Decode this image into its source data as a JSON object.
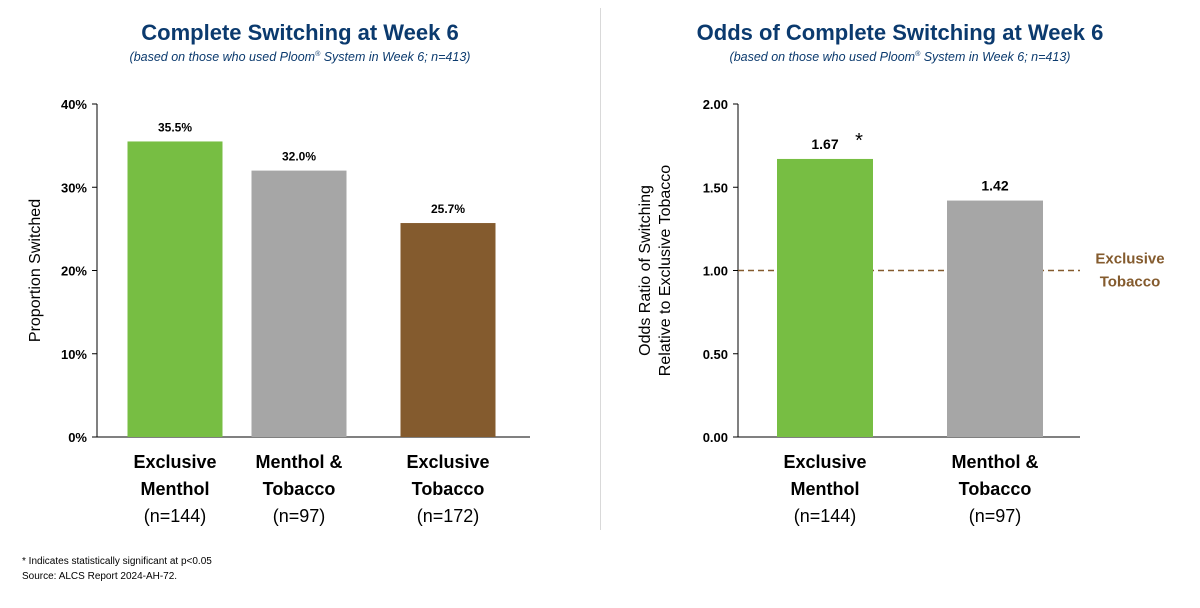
{
  "chart_data": [
    {
      "type": "bar",
      "title": "Complete Switching at Week 6",
      "subtitle_pre": "(based on those who used Ploom",
      "subtitle_sup": "®",
      "subtitle_post": " System in Week 6; n=413)",
      "ylabel": [
        "Proportion Switched"
      ],
      "ylim": [
        0,
        40
      ],
      "yticks": [
        "0%",
        "10%",
        "20%",
        "30%",
        "40%"
      ],
      "ytick_values": [
        0,
        10,
        20,
        30,
        40
      ],
      "categories": [
        [
          "Exclusive",
          "Menthol",
          "(n=144)"
        ],
        [
          "Menthol &",
          "Tobacco",
          "(n=97)"
        ],
        [
          "Exclusive",
          "Tobacco",
          "(n=172)"
        ]
      ],
      "values": [
        35.5,
        32.0,
        25.7
      ],
      "data_labels": [
        "35.5%",
        "32.0%",
        "25.7%"
      ],
      "colors": [
        "#77BE43",
        "#A6A6A6",
        "#845B2E"
      ],
      "grid": false
    },
    {
      "type": "bar",
      "title": "Odds of Complete Switching at Week 6",
      "subtitle_pre": "(based on those who used Ploom",
      "subtitle_sup": "®",
      "subtitle_post": " System in Week 6; n=413)",
      "ylabel": [
        "Odds Ratio of Switching",
        "Relative to Exclusive Tobacco"
      ],
      "ylim": [
        0,
        2
      ],
      "yticks": [
        "0.00",
        "0.50",
        "1.00",
        "1.50",
        "2.00"
      ],
      "ytick_values": [
        0,
        0.5,
        1,
        1.5,
        2
      ],
      "categories": [
        [
          "Exclusive",
          "Menthol",
          "(n=144)"
        ],
        [
          "Menthol &",
          "Tobacco",
          "(n=97)"
        ]
      ],
      "values": [
        1.67,
        1.42
      ],
      "data_labels": [
        "1.67",
        "1.42"
      ],
      "annotations": [
        "*",
        ""
      ],
      "colors": [
        "#77BE43",
        "#A6A6A6"
      ],
      "reference_line": {
        "value": 1.0,
        "label": [
          "Exclusive",
          "Tobacco"
        ],
        "color": "#845B2E",
        "style": "dashed"
      },
      "grid": false
    }
  ],
  "footnotes": [
    "* Indicates statistically significant at p<0.05",
    "Source: ALCS Report 2024-AH-72."
  ]
}
